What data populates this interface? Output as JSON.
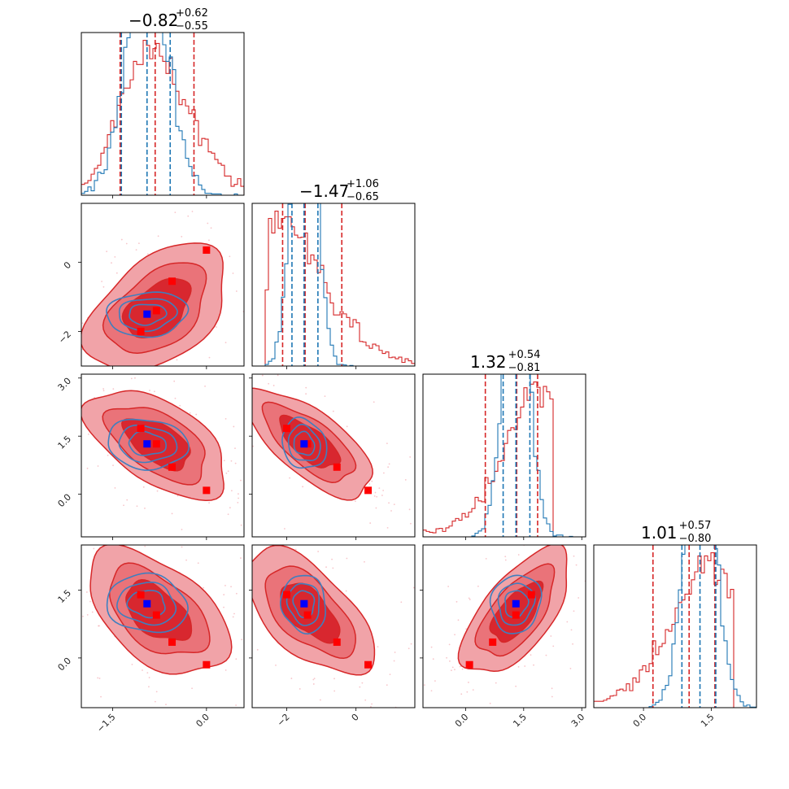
{
  "chart_data": {
    "type": "corner",
    "parameters": 4,
    "series": [
      {
        "name": "",
        "color": "#d62728",
        "style": "filled contours + step histograms"
      },
      {
        "name": "",
        "color": "#1f77b4",
        "style": "line contours + step histograms"
      }
    ],
    "marker_colors": {
      "red_points": "#ff0000",
      "blue_point": "#0000ff"
    },
    "titles": [
      {
        "param": 0,
        "median": "−0.82",
        "plus": "+0.62",
        "minus": "−0.55"
      },
      {
        "param": 1,
        "median": "−1.47",
        "plus": "+1.06",
        "minus": "−0.65"
      },
      {
        "param": 2,
        "median": "1.32",
        "plus": "+0.54",
        "minus": "−0.81"
      },
      {
        "param": 3,
        "median": "1.01",
        "plus": "+0.57",
        "minus": "−0.80"
      }
    ],
    "ranges": [
      [
        -2.0,
        0.6
      ],
      [
        -3.0,
        1.7
      ],
      [
        -1.1,
        3.1
      ],
      [
        -1.1,
        2.5
      ]
    ],
    "tick_labels": {
      "x": [
        {
          "param": 0,
          "ticks": [
            {
              "v": -1.5,
              "label": "−1.5"
            },
            {
              "v": 0.0,
              "label": "0.0"
            }
          ]
        },
        {
          "param": 1,
          "ticks": [
            {
              "v": -2,
              "label": "−2"
            },
            {
              "v": 0,
              "label": "0"
            }
          ]
        },
        {
          "param": 2,
          "ticks": [
            {
              "v": 0.0,
              "label": "0.0"
            },
            {
              "v": 1.5,
              "label": "1.5"
            },
            {
              "v": 3.0,
              "label": "3.0"
            }
          ]
        },
        {
          "param": 3,
          "ticks": [
            {
              "v": 0.0,
              "label": "0.0"
            },
            {
              "v": 1.5,
              "label": "1.5"
            }
          ]
        }
      ],
      "y": [
        {
          "param": 1,
          "ticks": [
            {
              "v": -2,
              "label": "−2"
            },
            {
              "v": 0,
              "label": "0"
            }
          ]
        },
        {
          "param": 2,
          "ticks": [
            {
              "v": 0.0,
              "label": "0.0"
            },
            {
              "v": 1.5,
              "label": "1.5"
            },
            {
              "v": 3.0,
              "label": "3.0"
            }
          ]
        },
        {
          "param": 3,
          "ticks": [
            {
              "v": 0.0,
              "label": "0.0"
            },
            {
              "v": 1.5,
              "label": "1.5"
            }
          ]
        }
      ]
    },
    "histograms": [
      {
        "param": 0,
        "red": {
          "mean": -0.78,
          "sd": 0.55,
          "skew": 0.3
        },
        "blue": {
          "mean": -0.95,
          "sd": 0.33,
          "skew": 0.0
        },
        "red_quantiles": [
          -1.38,
          -0.82,
          -0.2
        ],
        "blue_quantiles": [
          -1.36,
          -0.95,
          -0.58
        ]
      },
      {
        "param": 1,
        "red": {
          "mean": -1.35,
          "sd": 0.9,
          "skew": 0.9
        },
        "blue": {
          "mean": -1.5,
          "sd": 0.33,
          "skew": 0.0
        },
        "red_quantiles": [
          -2.12,
          -1.47,
          -0.41
        ],
        "blue_quantiles": [
          -1.85,
          -1.5,
          -1.1
        ]
      },
      {
        "param": 2,
        "red": {
          "mean": 1.32,
          "sd": 0.68,
          "skew": -0.9
        },
        "blue": {
          "mean": 1.3,
          "sd": 0.33,
          "skew": 0.0
        },
        "red_quantiles": [
          0.51,
          1.32,
          1.86
        ],
        "blue_quantiles": [
          0.97,
          1.3,
          1.66
        ]
      },
      {
        "param": 3,
        "red": {
          "mean": 1.01,
          "sd": 0.68,
          "skew": -0.8
        },
        "blue": {
          "mean": 1.25,
          "sd": 0.33,
          "skew": 0.0
        },
        "red_quantiles": [
          0.21,
          1.01,
          1.58
        ],
        "blue_quantiles": [
          0.85,
          1.25,
          1.6
        ]
      }
    ],
    "joint": [
      {
        "x": 0,
        "y": 1,
        "red_points": [
          [
            0.0,
            0.35
          ],
          [
            -0.55,
            -0.55
          ],
          [
            -0.8,
            -1.4
          ],
          [
            -1.05,
            -2.0
          ]
        ],
        "blue_point": [
          -0.95,
          -1.5
        ],
        "red_corr": 0.45,
        "blue_corr": 0.1
      },
      {
        "x": 0,
        "y": 2,
        "red_points": [
          [
            0.0,
            0.1
          ],
          [
            -0.55,
            0.7
          ],
          [
            -0.8,
            1.3
          ],
          [
            -1.05,
            1.7
          ]
        ],
        "blue_point": [
          -0.95,
          1.3
        ],
        "red_corr": -0.55,
        "blue_corr": -0.1
      },
      {
        "x": 1,
        "y": 2,
        "red_points": [
          [
            0.35,
            0.1
          ],
          [
            -0.55,
            0.7
          ],
          [
            -1.4,
            1.3
          ],
          [
            -2.0,
            1.7
          ]
        ],
        "blue_point": [
          -1.5,
          1.3
        ],
        "red_corr": -0.7,
        "blue_corr": -0.15
      },
      {
        "x": 0,
        "y": 3,
        "red_points": [
          [
            0.0,
            -0.15
          ],
          [
            -0.55,
            0.35
          ],
          [
            -0.8,
            0.95
          ],
          [
            -1.05,
            1.4
          ]
        ],
        "blue_point": [
          -0.95,
          1.2
        ],
        "red_corr": -0.5,
        "blue_corr": -0.1
      },
      {
        "x": 1,
        "y": 3,
        "red_points": [
          [
            0.35,
            -0.15
          ],
          [
            -0.55,
            0.35
          ],
          [
            -1.4,
            0.95
          ],
          [
            -2.0,
            1.4
          ]
        ],
        "blue_point": [
          -1.5,
          1.2
        ],
        "red_corr": -0.6,
        "blue_corr": -0.1
      },
      {
        "x": 2,
        "y": 3,
        "red_points": [
          [
            0.1,
            -0.15
          ],
          [
            0.7,
            0.35
          ],
          [
            1.3,
            0.95
          ],
          [
            1.7,
            1.4
          ]
        ],
        "blue_point": [
          1.3,
          1.2
        ],
        "red_corr": 0.65,
        "blue_corr": 0.1
      }
    ]
  }
}
